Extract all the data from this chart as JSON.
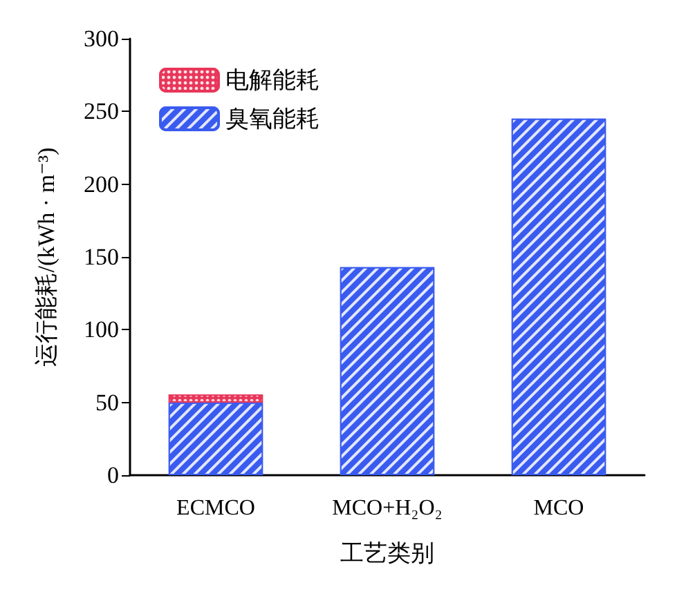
{
  "chart_data": {
    "type": "bar",
    "stacked": true,
    "xlabel": "工艺类别",
    "ylabel": "运行能耗/(kWh · m⁻³)",
    "categories": [
      "ECMCO",
      "MCO+H₂O₂",
      "MCO"
    ],
    "series": [
      {
        "name": "臭氧能耗",
        "color": "#3a5bef",
        "values": [
          50,
          143,
          245
        ]
      },
      {
        "name": "电解能耗",
        "color": "#e8365a",
        "values": [
          5.5,
          null,
          null
        ]
      }
    ],
    "ylim": [
      0,
      300
    ],
    "yticks": [
      0,
      50,
      100,
      150,
      200,
      250,
      300
    ],
    "legend": "top left",
    "grid": false
  }
}
